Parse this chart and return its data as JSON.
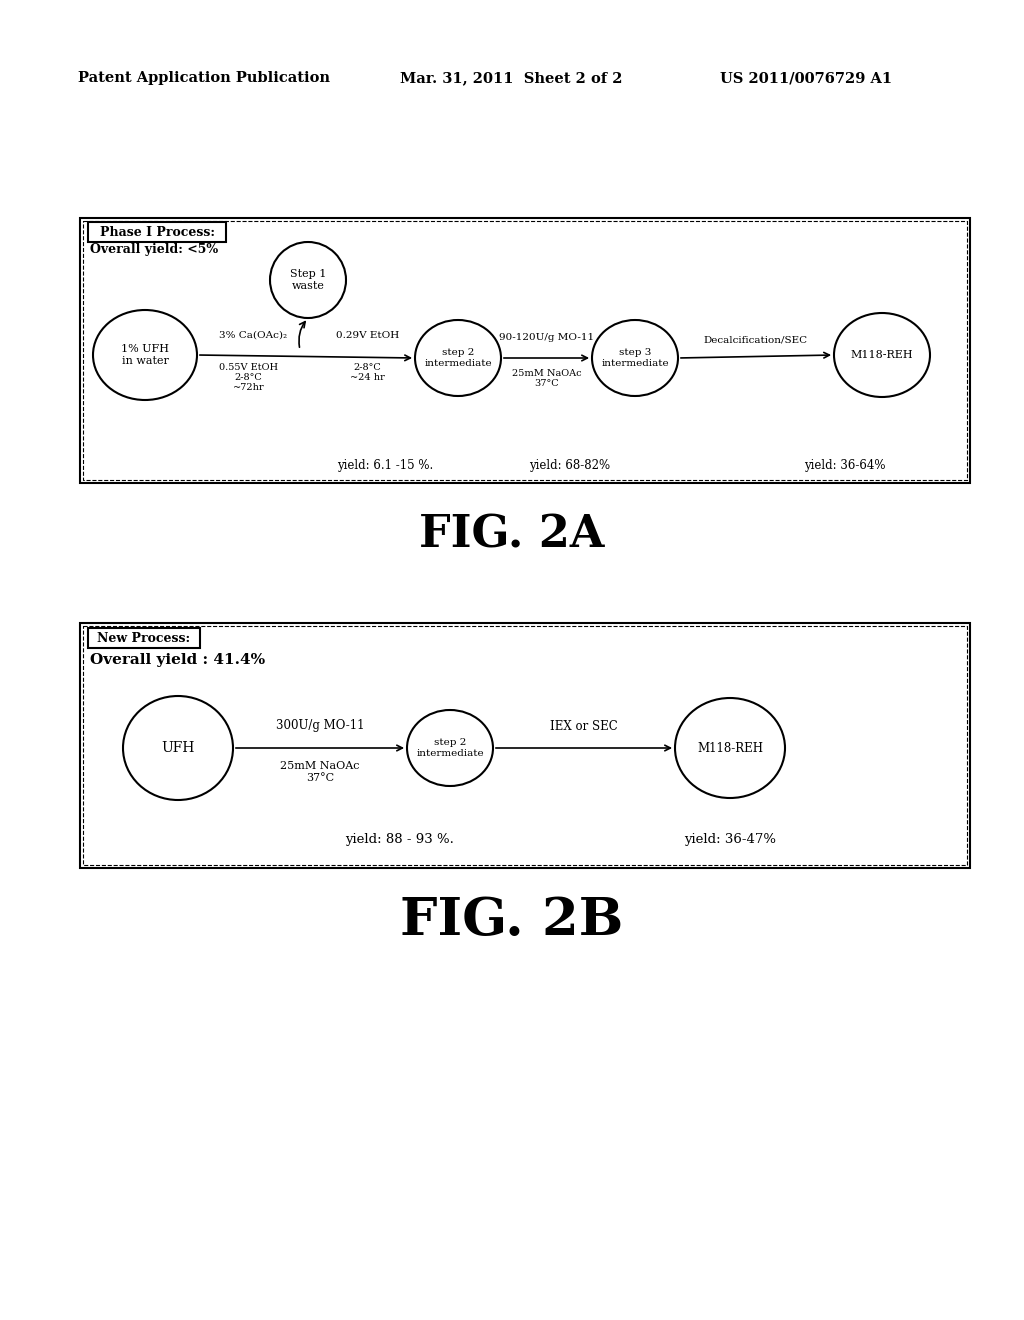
{
  "header_left": "Patent Application Publication",
  "header_mid": "Mar. 31, 2011  Sheet 2 of 2",
  "header_right": "US 2011/0076729 A1",
  "fig2a_label": "FIG. 2A",
  "fig2b_label": "FIG. 2B",
  "fig2a": {
    "title_box": "Phase I Process:",
    "overall_yield": "Overall yield: <5%",
    "node1_label": "1% UFH\nin water",
    "node2_label": "Step 1\nwaste",
    "node3_label": "step 2\nintermediate",
    "node4_label": "step 3\nintermediate",
    "node5_label": "M118-REH",
    "arrow1_top": "3% Ca(OAc)₂",
    "arrow1_bot1": "0.55V EtOH",
    "arrow1_bot2": "2-8°C",
    "arrow1_bot3": "~72hr",
    "arrow1b_top": "0.29V EtOH",
    "arrow1b_bot1": "2-8°C",
    "arrow1b_bot2": "~24 hr",
    "arrow2_top": "90-120U/g MO-11",
    "arrow2_bot1": "25mM NaOAc",
    "arrow2_bot2": "37°C",
    "arrow3_top": "Decalcification/SEC",
    "yield1": "yield: 6.1 -15 %.",
    "yield2": "yield: 68-82%",
    "yield3": "yield: 36-64%"
  },
  "fig2b": {
    "title_box": "New Process:",
    "overall_yield": "Overall yield : 41.4%",
    "node1_label": "UFH",
    "node2_label": "step 2\nintermediate",
    "node3_label": "M118-REH",
    "arrow1_top": "300U/g MO-11",
    "arrow1_bot1": "25mM NaOAc",
    "arrow1_bot2": "37°C",
    "arrow2_top": "IEX or SEC",
    "yield1": "yield: 88 - 93 %.",
    "yield2": "yield: 36-47%"
  },
  "bg_color": "#ffffff",
  "box_color": "#000000",
  "text_color": "#000000"
}
